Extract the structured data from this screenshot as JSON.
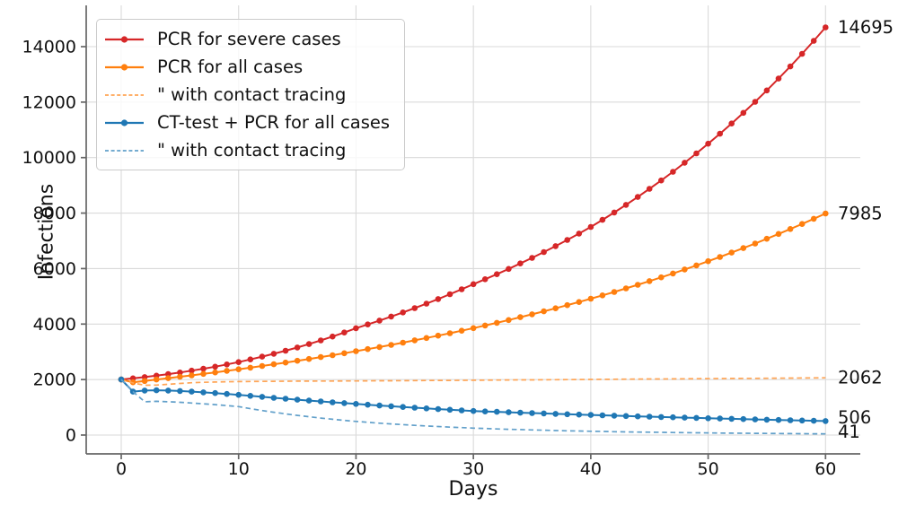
{
  "chart_data": {
    "type": "line",
    "title": "",
    "xlabel": "Days",
    "ylabel": "Infections",
    "grid": true,
    "legend_position": "upper-left",
    "x_range": [
      -3,
      63
    ],
    "y_range": [
      -650,
      15430
    ],
    "axes": {
      "x_ticks": [
        0,
        10,
        20,
        30,
        40,
        50,
        60
      ],
      "y_ticks": [
        0,
        2000,
        4000,
        6000,
        8000,
        10000,
        12000,
        14000
      ]
    },
    "days": [
      0,
      1,
      2,
      3,
      4,
      5,
      6,
      7,
      8,
      9,
      10,
      11,
      12,
      13,
      14,
      15,
      16,
      17,
      18,
      19,
      20,
      21,
      22,
      23,
      24,
      25,
      26,
      27,
      28,
      29,
      30,
      31,
      32,
      33,
      34,
      35,
      36,
      37,
      38,
      39,
      40,
      41,
      42,
      43,
      44,
      45,
      46,
      47,
      48,
      49,
      50,
      51,
      52,
      53,
      54,
      55,
      56,
      57,
      58,
      59,
      60
    ],
    "series": [
      {
        "name": "PCR for severe cases",
        "color": "#d62728",
        "line_style": "solid",
        "markers": true,
        "end_label": "14695",
        "values": [
          2000,
          2045,
          2090,
          2140,
          2195,
          2255,
          2320,
          2390,
          2465,
          2545,
          2630,
          2725,
          2825,
          2930,
          3040,
          3155,
          3280,
          3410,
          3550,
          3695,
          3850,
          3985,
          4125,
          4270,
          4420,
          4576,
          4737,
          4903,
          5075,
          5253,
          5437,
          5615,
          5798,
          5988,
          6184,
          6386,
          6595,
          6810,
          7033,
          7263,
          7500,
          7756,
          8022,
          8296,
          8580,
          8874,
          9177,
          9491,
          9816,
          10152,
          10500,
          10859,
          11230,
          11614,
          12012,
          12423,
          12848,
          13287,
          13742,
          14211,
          14695
        ]
      },
      {
        "name": "PCR for all cases",
        "color": "#ff7f0e",
        "line_style": "solid",
        "markers": true,
        "end_label": "7985",
        "values": [
          2000,
          1900,
          1945,
          2000,
          2049,
          2100,
          2151,
          2204,
          2258,
          2314,
          2371,
          2429,
          2489,
          2550,
          2613,
          2677,
          2743,
          2810,
          2879,
          2950,
          3023,
          3097,
          3173,
          3251,
          3331,
          3413,
          3497,
          3583,
          3671,
          3761,
          3854,
          3949,
          4046,
          4145,
          4247,
          4352,
          4459,
          4568,
          4681,
          4796,
          4914,
          5035,
          5158,
          5285,
          5415,
          5548,
          5685,
          5824,
          5968,
          6114,
          6265,
          6419,
          6577,
          6738,
          6904,
          7074,
          7248,
          7426,
          7608,
          7794,
          7985
        ]
      },
      {
        "name": "\" with contact tracing",
        "color": "#ffa556",
        "line_style": "dashed",
        "markers": false,
        "end_label": "2062",
        "values": [
          2000,
          1880,
          1795,
          1800,
          1830,
          1860,
          1885,
          1900,
          1912,
          1920,
          1927,
          1931,
          1935,
          1938,
          1940,
          1942,
          1944,
          1945,
          1947,
          1949,
          1950,
          1952,
          1955,
          1957,
          1960,
          1962,
          1965,
          1968,
          1970,
          1973,
          1976,
          1979,
          1982,
          1984,
          1987,
          1990,
          1993,
          1996,
          1999,
          2002,
          2005,
          2008,
          2011,
          2014,
          2017,
          2020,
          2022,
          2025,
          2028,
          2030,
          2033,
          2036,
          2039,
          2042,
          2044,
          2047,
          2050,
          2053,
          2056,
          2059,
          2062
        ]
      },
      {
        "name": "CT-test + PCR for all cases",
        "color": "#1f77b4",
        "line_style": "solid",
        "markers": true,
        "end_label": "506",
        "values": [
          2000,
          1565,
          1605,
          1612,
          1604,
          1588,
          1566,
          1540,
          1512,
          1482,
          1450,
          1413,
          1377,
          1342,
          1308,
          1275,
          1242,
          1211,
          1180,
          1150,
          1121,
          1092,
          1064,
          1037,
          1011,
          985,
          960,
          936,
          912,
          889,
          866,
          851,
          836,
          821,
          806,
          792,
          778,
          764,
          751,
          737,
          724,
          711,
          699,
          686,
          674,
          662,
          650,
          639,
          628,
          616,
          606,
          595,
          584,
          574,
          564,
          554,
          544,
          534,
          525,
          515,
          506
        ]
      },
      {
        "name": "\" with contact tracing",
        "color": "#62a0ca",
        "line_style": "dashed",
        "markers": false,
        "end_label": "41",
        "values": [
          2000,
          1565,
          1200,
          1215,
          1200,
          1180,
          1155,
          1125,
          1095,
          1060,
          1025,
          952,
          884,
          821,
          763,
          709,
          658,
          611,
          568,
          527,
          490,
          458,
          428,
          400,
          374,
          350,
          327,
          306,
          286,
          267,
          250,
          235,
          221,
          208,
          196,
          184,
          173,
          163,
          153,
          144,
          135,
          128,
          121,
          114,
          108,
          102,
          96,
          91,
          86,
          81,
          77,
          72,
          68,
          64,
          61,
          57,
          54,
          51,
          48,
          44,
          41
        ]
      }
    ],
    "style": {
      "grid_color": "#dadada",
      "spine_color": "#666666",
      "tick_color": "#666666",
      "text_color": "#111111",
      "background": "#ffffff"
    }
  }
}
